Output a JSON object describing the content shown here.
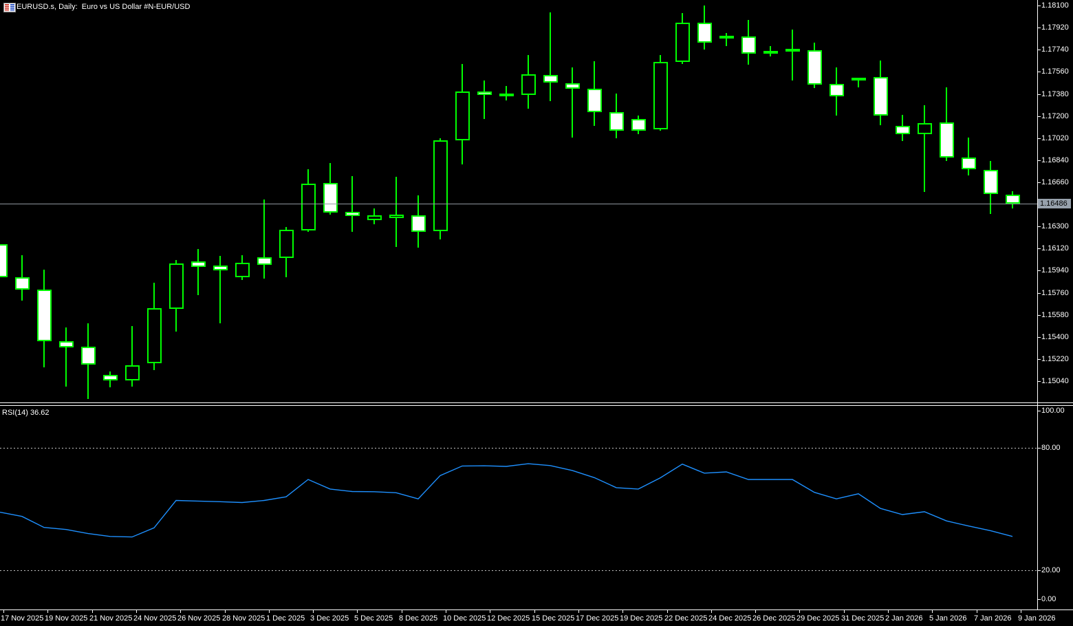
{
  "window": {
    "title": "EURUSD.s, Daily:  Euro vs US Dollar #N-EUR/USD",
    "symbol_icon": "candlestick-chart-icon"
  },
  "colors": {
    "background": "#000000",
    "foreground": "#FFFFFF",
    "candle_outline": "#00FF00",
    "bear_body_fill": "#FFFFFF",
    "bull_body_fill": "#000000",
    "current_price_line": "#9098A0",
    "price_badge_bg": "#97A1AC",
    "price_badge_text": "#000000",
    "rsi_line": "#1E90FF",
    "level_line": "#C4C4C4"
  },
  "price_axis": {
    "current_price": "1.16486",
    "ticks": [
      "1.18100",
      "1.17920",
      "1.17740",
      "1.17560",
      "1.17380",
      "1.17200",
      "1.17020",
      "1.16840",
      "1.16660",
      "1.16300",
      "1.16120",
      "1.15940",
      "1.15760",
      "1.15580",
      "1.15400",
      "1.15220",
      "1.15040"
    ]
  },
  "time_axis": {
    "ticks": [
      "17 Nov 2025",
      "19 Nov 2025",
      "21 Nov 2025",
      "24 Nov 2025",
      "26 Nov 2025",
      "28 Nov 2025",
      "1 Dec 2025",
      "3 Dec 2025",
      "5 Dec 2025",
      "8 Dec 2025",
      "10 Dec 2025",
      "12 Dec 2025",
      "15 Dec 2025",
      "17 Dec 2025",
      "19 Dec 2025",
      "22 Dec 2025",
      "24 Dec 2025",
      "26 Dec 2025",
      "29 Dec 2025",
      "31 Dec 2025",
      "2 Jan 2026",
      "5 Jan 2026",
      "7 Jan 2026",
      "9 Jan 2026"
    ]
  },
  "rsi_panel": {
    "label": "RSI(14) 36.62",
    "ticks": [
      {
        "value": 100,
        "label": "100.00"
      },
      {
        "value": 80,
        "label": "80.00"
      },
      {
        "value": 20,
        "label": "20.00"
      },
      {
        "value": 0,
        "label": "0.00"
      }
    ],
    "dashed_levels": [
      80,
      20
    ]
  },
  "chart_data": {
    "type": "candlestick",
    "title": "EURUSD.s, Daily: Euro vs US Dollar #N-EUR/USD",
    "symbol": "EURUSD.s",
    "timeframe": "Daily",
    "ylim": [
      1.1489,
      1.18145
    ],
    "current_price": 1.16486,
    "x_tick_labels": [
      "17 Nov 2025",
      "19 Nov 2025",
      "21 Nov 2025",
      "24 Nov 2025",
      "26 Nov 2025",
      "28 Nov 2025",
      "1 Dec 2025",
      "3 Dec 2025",
      "5 Dec 2025",
      "8 Dec 2025",
      "10 Dec 2025",
      "12 Dec 2025",
      "15 Dec 2025",
      "17 Dec 2025",
      "19 Dec 2025",
      "22 Dec 2025",
      "24 Dec 2025",
      "26 Dec 2025",
      "29 Dec 2025",
      "31 Dec 2025",
      "2 Jan 2026",
      "5 Jan 2026",
      "7 Jan 2026",
      "9 Jan 2026"
    ],
    "x_ticks_every_n_candles": 2,
    "candles_ohlc": [
      [
        1.16155,
        1.16155,
        1.15886,
        1.15886
      ],
      [
        1.15886,
        1.16066,
        1.15696,
        1.15785
      ],
      [
        1.15785,
        1.15948,
        1.15152,
        1.15365
      ],
      [
        1.15365,
        1.15477,
        1.14996,
        1.15315
      ],
      [
        1.15321,
        1.15511,
        1.14895,
        1.15175
      ],
      [
        1.15091,
        1.15119,
        1.1499,
        1.15046
      ],
      [
        1.15046,
        1.15489,
        1.14996,
        1.15169
      ],
      [
        1.15186,
        1.15842,
        1.1513,
        1.15634
      ],
      [
        1.15629,
        1.16027,
        1.15444,
        1.15999
      ],
      [
        1.16015,
        1.16116,
        1.15741,
        1.15971
      ],
      [
        1.15982,
        1.1606,
        1.15511,
        1.15943
      ],
      [
        1.15886,
        1.16066,
        1.15864,
        1.16004
      ],
      [
        1.16049,
        1.1652,
        1.15875,
        1.15987
      ],
      [
        1.16044,
        1.16296,
        1.15886,
        1.16273
      ],
      [
        1.16268,
        1.16766,
        1.16257,
        1.16649
      ],
      [
        1.16654,
        1.16817,
        1.16397,
        1.16413
      ],
      [
        1.16419,
        1.1671,
        1.16257,
        1.16385
      ],
      [
        1.16352,
        1.16447,
        1.16318,
        1.16391
      ],
      [
        1.16369,
        1.16705,
        1.16133,
        1.16397
      ],
      [
        1.16391,
        1.16553,
        1.16128,
        1.16257
      ],
      [
        1.16262,
        1.17019,
        1.16195,
        1.17002
      ],
      [
        1.17002,
        1.17624,
        1.16806,
        1.174
      ],
      [
        1.174,
        1.17489,
        1.17176,
        1.17372
      ],
      [
        1.17361,
        1.17445,
        1.17327,
        1.17383
      ],
      [
        1.17372,
        1.17697,
        1.1726,
        1.1754
      ],
      [
        1.17534,
        1.18044,
        1.17321,
        1.17473
      ],
      [
        1.17467,
        1.17596,
        1.17024,
        1.17422
      ],
      [
        1.17422,
        1.17646,
        1.1712,
        1.17232
      ],
      [
        1.17232,
        1.17383,
        1.17019,
        1.1708
      ],
      [
        1.17176,
        1.17204,
        1.17052,
        1.1708
      ],
      [
        1.17091,
        1.17697,
        1.1708,
        1.17641
      ],
      [
        1.17641,
        1.18039,
        1.17624,
        1.1796
      ],
      [
        1.1796,
        1.181,
        1.17742,
        1.17798
      ],
      [
        1.17837,
        1.17876,
        1.1777,
        1.17854
      ],
      [
        1.17848,
        1.17983,
        1.17618,
        1.17708
      ],
      [
        1.17708,
        1.1777,
        1.17686,
        1.1773
      ],
      [
        1.17736,
        1.17904,
        1.17489,
        1.17747
      ],
      [
        1.17736,
        1.17798,
        1.17428,
        1.17456
      ],
      [
        1.17461,
        1.17596,
        1.17204,
        1.17361
      ],
      [
        1.17495,
        1.17512,
        1.17434,
        1.17512
      ],
      [
        1.17517,
        1.17652,
        1.17125,
        1.17204
      ],
      [
        1.1712,
        1.17209,
        1.16996,
        1.17052
      ],
      [
        1.17052,
        1.17288,
        1.16581,
        1.17142
      ],
      [
        1.17147,
        1.17433,
        1.16834,
        1.16862
      ],
      [
        1.16862,
        1.17024,
        1.16716,
        1.16766
      ],
      [
        1.16761,
        1.16834,
        1.16402,
        1.16565
      ],
      [
        1.16559,
        1.16587,
        1.16447,
        1.16486
      ]
    ],
    "indicator": {
      "type": "line",
      "name": "RSI(14)",
      "current_value": 36.62,
      "ylim": [
        0,
        100
      ],
      "overbought_level": 80,
      "oversold_level": 20,
      "values": [
        48.5,
        46.4,
        41.0,
        40.0,
        38.0,
        36.6,
        36.3,
        40.8,
        54.2,
        53.9,
        53.6,
        53.2,
        54.2,
        56.0,
        64.5,
        59.8,
        58.6,
        58.5,
        58.0,
        55.0,
        66.4,
        71.1,
        71.2,
        70.9,
        72.2,
        71.3,
        68.9,
        65.4,
        60.5,
        59.8,
        65.3,
        72.0,
        67.6,
        68.2,
        64.5,
        64.5,
        64.5,
        58.2,
        55.0,
        57.5,
        50.3,
        47.3,
        48.7,
        44.2,
        41.7,
        39.4,
        36.6
      ]
    }
  }
}
